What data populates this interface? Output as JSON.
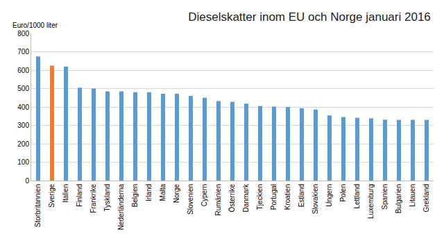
{
  "chart_data": {
    "type": "bar",
    "title": "Dieselskatter inom EU och Norge januari 2016",
    "y_label": "Euro/1000 liter",
    "categories": [
      "Storbritannien",
      "Sverige",
      "Italien",
      "Finland",
      "Frankrike",
      "Tyskland",
      "Nederländerna",
      "Belgien",
      "Irland",
      "Malta",
      "Norge",
      "Slovenien",
      "Cypern",
      "Rumänien",
      "Österrike",
      "Danmark",
      "Tjeckien",
      "Portugal",
      "Kroatien",
      "Estland",
      "Slovakien",
      "Ungern",
      "Polen",
      "Lettland",
      "Luxemburg",
      "Spanien",
      "Bulgarien",
      "Litauen",
      "Grekland"
    ],
    "values": [
      675,
      625,
      620,
      505,
      500,
      485,
      485,
      480,
      480,
      472,
      472,
      460,
      450,
      432,
      428,
      418,
      405,
      402,
      400,
      393,
      386,
      354,
      345,
      341,
      338,
      331,
      330,
      330,
      330
    ],
    "colors": [
      "#5b9bd5",
      "#ed7d31",
      "#5b9bd5",
      "#5b9bd5",
      "#5b9bd5",
      "#5b9bd5",
      "#5b9bd5",
      "#5b9bd5",
      "#5b9bd5",
      "#5b9bd5",
      "#5b9bd5",
      "#5b9bd5",
      "#5b9bd5",
      "#5b9bd5",
      "#5b9bd5",
      "#5b9bd5",
      "#5b9bd5",
      "#5b9bd5",
      "#5b9bd5",
      "#5b9bd5",
      "#5b9bd5",
      "#5b9bd5",
      "#5b9bd5",
      "#5b9bd5",
      "#5b9bd5",
      "#5b9bd5",
      "#5b9bd5",
      "#5b9bd5",
      "#5b9bd5"
    ],
    "ylim": [
      0,
      800
    ],
    "yticks": [
      0,
      100,
      200,
      300,
      400,
      500,
      600,
      700,
      800
    ],
    "grid": true
  }
}
